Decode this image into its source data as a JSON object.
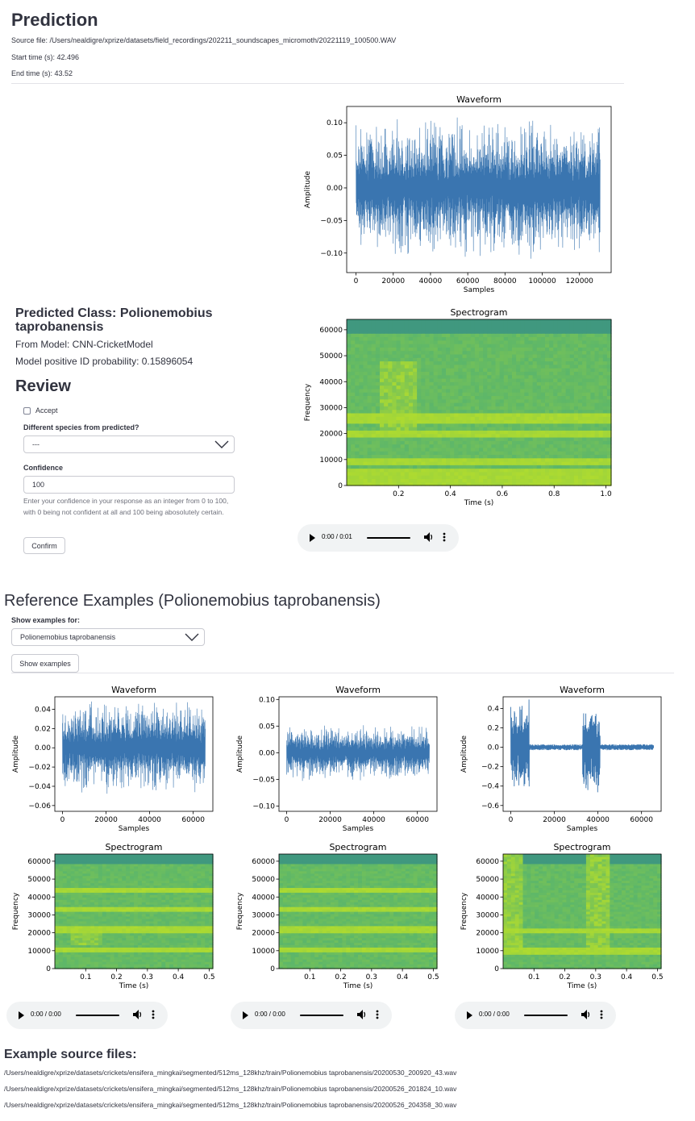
{
  "prediction": {
    "heading": "Prediction",
    "source_file": "Source file: /Users/nealdigre/xprize/datasets/field_recordings/202211_soundscapes_micromoth/20221119_100500.WAV",
    "start_time": "Start time (s): 42.496",
    "end_time": "End time (s): 43.52",
    "predicted_class": "Predicted Class: Polionemobius taprobanensis",
    "from_model": "From Model: CNN-CricketModel",
    "probability": "Model positive ID probability: 0.15896054",
    "audio_time": "0:00 / 0:01"
  },
  "review": {
    "heading": "Review",
    "accept_label": "Accept",
    "species_label": "Different species from predicted?",
    "species_value": "---",
    "confidence_label": "Confidence",
    "confidence_value": "100",
    "help_text": "Enter your confidence in your response as an integer from 0 to 100, with 0 being not confident at all and 100 being abosolutely certain.",
    "confirm_label": "Confirm"
  },
  "reference": {
    "heading": "Reference Examples (Polionemobius taprobanensis)",
    "show_for_label": "Show examples for:",
    "show_for_value": "Polionemobius taprobanensis",
    "show_button": "Show examples",
    "audio_times": [
      "0:00 / 0:00",
      "0:00 / 0:00",
      "0:00 / 0:00"
    ]
  },
  "sources": {
    "heading": "Example source files:",
    "files": [
      "/Users/nealdigre/xprize/datasets/crickets/ensifera_mingkai/segmented/512ms_128khz/train/Polionemobius taprobanensis/20200530_200920_43.wav",
      "/Users/nealdigre/xprize/datasets/crickets/ensifera_mingkai/segmented/512ms_128khz/train/Polionemobius taprobanensis/20200526_201824_10.wav",
      "/Users/nealdigre/xprize/datasets/crickets/ensifera_mingkai/segmented/512ms_128khz/train/Polionemobius taprobanensis/20200526_204358_30.wav"
    ]
  },
  "colors": {
    "waveform": "#3a75b0",
    "spec_base": "#55b36f",
    "spec_band": "#b5de2b",
    "spec_dark": "#2b7c8e"
  },
  "chart_data": [
    {
      "id": "main-waveform",
      "type": "line",
      "title": "Waveform",
      "xlabel": "Samples",
      "ylabel": "Amplitude",
      "xlim": [
        -5000,
        137000
      ],
      "ylim": [
        -0.13,
        0.125
      ],
      "xticks": [
        0,
        20000,
        40000,
        60000,
        80000,
        100000,
        120000
      ],
      "yticks": [
        -0.1,
        -0.05,
        0.0,
        0.05,
        0.1
      ],
      "ytick_labels": [
        "−0.10",
        "−0.05",
        "0.00",
        "0.05",
        "0.10"
      ],
      "n_samples": 131072,
      "envelope": 0.1,
      "min": -0.127,
      "max": 0.112,
      "color": "#3a75b0"
    },
    {
      "id": "main-spectrogram",
      "type": "heatmap",
      "title": "Spectrogram",
      "xlabel": "Time (s)",
      "ylabel": "Frequency",
      "xlim": [
        0.0,
        1.02
      ],
      "ylim": [
        0,
        64000
      ],
      "xticks": [
        0.2,
        0.4,
        0.6,
        0.8,
        1.0
      ],
      "xtick_labels": [
        "0.2",
        "0.4",
        "0.6",
        "0.8",
        "1.0"
      ],
      "yticks": [
        0,
        10000,
        20000,
        30000,
        40000,
        50000,
        60000
      ],
      "bands_khz": [
        2,
        5,
        9,
        20,
        26
      ],
      "bursts": [
        [
          0.12,
          0.27,
          22000,
          48000
        ]
      ]
    },
    {
      "id": "ref1-waveform",
      "type": "line",
      "title": "Waveform",
      "xlabel": "Samples",
      "ylabel": "Amplitude",
      "xlim": [
        -3500,
        69000
      ],
      "ylim": [
        -0.066,
        0.053
      ],
      "xticks": [
        0,
        20000,
        40000,
        60000
      ],
      "yticks": [
        -0.06,
        -0.04,
        -0.02,
        0.0,
        0.02,
        0.04
      ],
      "ytick_labels": [
        "−0.06",
        "−0.04",
        "−0.02",
        "0.00",
        "0.02",
        "0.04"
      ],
      "n_samples": 65536,
      "envelope": 0.045,
      "min": -0.064,
      "max": 0.05,
      "color": "#3a75b0"
    },
    {
      "id": "ref2-waveform",
      "type": "line",
      "title": "Waveform",
      "xlabel": "Samples",
      "ylabel": "Amplitude",
      "xlim": [
        -3500,
        69000
      ],
      "ylim": [
        -0.11,
        0.105
      ],
      "xticks": [
        0,
        20000,
        40000,
        60000
      ],
      "yticks": [
        -0.1,
        -0.05,
        0.0,
        0.05,
        0.1
      ],
      "ytick_labels": [
        "−0.10",
        "−0.05",
        "0.00",
        "0.05",
        "0.10"
      ],
      "n_samples": 65536,
      "envelope": 0.05,
      "min": -0.105,
      "max": 0.092,
      "color": "#3a75b0"
    },
    {
      "id": "ref3-waveform",
      "type": "line",
      "title": "Waveform",
      "xlabel": "Samples",
      "ylabel": "Amplitude",
      "xlim": [
        -3500,
        69000
      ],
      "ylim": [
        -0.66,
        0.52
      ],
      "xticks": [
        0,
        20000,
        40000,
        60000
      ],
      "yticks": [
        -0.6,
        -0.4,
        -0.2,
        0.0,
        0.2,
        0.4
      ],
      "ytick_labels": [
        "−0.6",
        "−0.4",
        "−0.2",
        "0.0",
        "0.2",
        "0.4"
      ],
      "n_samples": 65536,
      "envelope": 0.03,
      "min": -0.6,
      "max": 0.5,
      "color": "#3a75b0",
      "pulses": [
        [
          0,
          8500
        ],
        [
          33000,
          41000
        ]
      ]
    },
    {
      "id": "ref1-spectrogram",
      "type": "heatmap",
      "title": "Spectrogram",
      "xlabel": "Time (s)",
      "ylabel": "Frequency",
      "xlim": [
        0.0,
        0.512
      ],
      "ylim": [
        0,
        64000
      ],
      "xticks": [
        0.1,
        0.2,
        0.3,
        0.4,
        0.5
      ],
      "xtick_labels": [
        "0.1",
        "0.2",
        "0.3",
        "0.4",
        "0.5"
      ],
      "yticks": [
        0,
        10000,
        20000,
        30000,
        40000,
        50000,
        60000
      ],
      "bands_khz": [
        11,
        22,
        33,
        44
      ],
      "bursts": [
        [
          0.05,
          0.15,
          14000,
          20000
        ]
      ]
    },
    {
      "id": "ref2-spectrogram",
      "type": "heatmap",
      "title": "Spectrogram",
      "xlabel": "Time (s)",
      "ylabel": "Frequency",
      "xlim": [
        0.0,
        0.512
      ],
      "ylim": [
        0,
        64000
      ],
      "xticks": [
        0.1,
        0.2,
        0.3,
        0.4,
        0.5
      ],
      "xtick_labels": [
        "0.1",
        "0.2",
        "0.3",
        "0.4",
        "0.5"
      ],
      "yticks": [
        0,
        10000,
        20000,
        30000,
        40000,
        50000,
        60000
      ],
      "bands_khz": [
        11,
        22,
        33,
        44
      ],
      "bursts": []
    },
    {
      "id": "ref3-spectrogram",
      "type": "heatmap",
      "title": "Spectrogram",
      "xlabel": "Time (s)",
      "ylabel": "Frequency",
      "xlim": [
        0.0,
        0.512
      ],
      "ylim": [
        0,
        64000
      ],
      "xticks": [
        0.1,
        0.2,
        0.3,
        0.4,
        0.5
      ],
      "xtick_labels": [
        "0.1",
        "0.2",
        "0.3",
        "0.4",
        "0.5"
      ],
      "yticks": [
        0,
        10000,
        20000,
        30000,
        40000,
        50000,
        60000
      ],
      "bands_khz": [
        10,
        21
      ],
      "bursts": [
        [
          0.0,
          0.07,
          8000,
          64000
        ],
        [
          0.27,
          0.34,
          8000,
          64000
        ]
      ]
    }
  ]
}
